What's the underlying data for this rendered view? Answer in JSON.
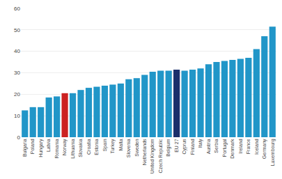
{
  "chart_data": {
    "type": "bar",
    "categories": [
      "Bulgaria",
      "Poland",
      "Hungary",
      "Latvia",
      "Romania",
      "Norway",
      "Lithuania",
      "Slovakia",
      "Croatia",
      "Estonia",
      "Spain",
      "Turkey",
      "Malta",
      "Slovenia",
      "Sweden",
      "Netherlands",
      "United Kingdom",
      "Czech Republic",
      "Belgium",
      "EU 27",
      "Cyprus",
      "Finland",
      "Italy",
      "Austria",
      "Serbia",
      "Portugal",
      "Denmark",
      "Ireland",
      "France",
      "Iceland",
      "Germany",
      "Luxembourg"
    ],
    "values": [
      12.5,
      14.0,
      14.0,
      18.5,
      19.0,
      20.5,
      20.5,
      22.0,
      23.0,
      23.5,
      24.0,
      24.5,
      25.0,
      27.0,
      27.5,
      29.0,
      30.5,
      31.0,
      31.0,
      31.5,
      31.0,
      31.5,
      32.0,
      34.0,
      35.0,
      35.5,
      36.0,
      36.5,
      37.0,
      41.0,
      47.0,
      51.5
    ],
    "colors": [
      "#2196c8",
      "#2196c8",
      "#2196c8",
      "#2196c8",
      "#2196c8",
      "#cc2222",
      "#2196c8",
      "#2196c8",
      "#2196c8",
      "#2196c8",
      "#2196c8",
      "#2196c8",
      "#2196c8",
      "#2196c8",
      "#2196c8",
      "#2196c8",
      "#2196c8",
      "#2196c8",
      "#2196c8",
      "#1a2e6b",
      "#2196c8",
      "#2196c8",
      "#2196c8",
      "#2196c8",
      "#2196c8",
      "#2196c8",
      "#2196c8",
      "#2196c8",
      "#2196c8",
      "#2196c8",
      "#2196c8",
      "#2196c8"
    ],
    "ylim": [
      0,
      60
    ],
    "yticks": [
      0,
      10,
      20,
      30,
      40,
      50,
      60
    ],
    "grid": true
  }
}
